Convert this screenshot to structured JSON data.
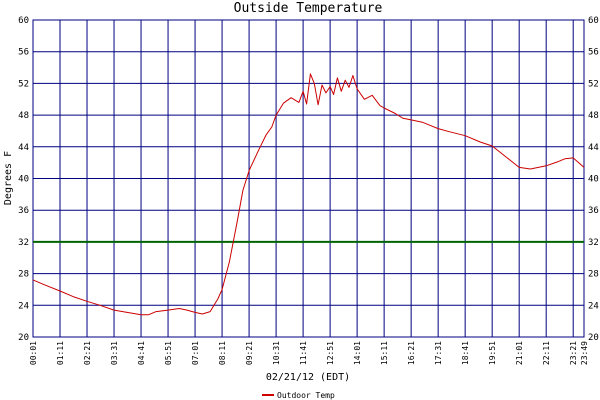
{
  "chart_data": {
    "type": "line",
    "title": "Outside Temperature",
    "xlabel": "02/21/12 (EDT)",
    "ylabel": "Degrees F",
    "ylim": [
      20,
      60
    ],
    "y_ticks": [
      20,
      24,
      28,
      32,
      36,
      40,
      44,
      48,
      52,
      56,
      60
    ],
    "x_range": [
      "00:01",
      "23:49"
    ],
    "x_ticks": [
      "00:01",
      "01:11",
      "02:21",
      "03:31",
      "04:41",
      "05:51",
      "07:01",
      "08:11",
      "09:21",
      "10:31",
      "11:41",
      "12:51",
      "14:01",
      "15:11",
      "16:21",
      "17:31",
      "18:41",
      "19:51",
      "21:01",
      "22:11",
      "23:21",
      "23:49"
    ],
    "grid": true,
    "legend_position": "bottom",
    "colors": {
      "background": "#ffffff",
      "grid": "#000080",
      "series": "#cc0000",
      "reference": "#006400"
    },
    "reference_line": {
      "y": 32
    },
    "series": [
      {
        "name": "Outdoor Temp",
        "x": [
          "00:01",
          "00:30",
          "01:11",
          "01:45",
          "02:21",
          "02:55",
          "03:31",
          "04:05",
          "04:41",
          "05:00",
          "05:20",
          "05:51",
          "06:20",
          "06:40",
          "07:01",
          "07:20",
          "07:40",
          "08:00",
          "08:11",
          "08:30",
          "08:50",
          "09:05",
          "09:21",
          "09:45",
          "10:05",
          "10:20",
          "10:31",
          "10:50",
          "11:10",
          "11:30",
          "11:41",
          "11:50",
          "12:00",
          "12:10",
          "12:20",
          "12:30",
          "12:40",
          "12:51",
          "13:00",
          "13:10",
          "13:20",
          "13:30",
          "13:40",
          "13:50",
          "14:01",
          "14:20",
          "14:40",
          "15:00",
          "15:11",
          "15:40",
          "16:00",
          "16:21",
          "16:50",
          "17:31",
          "18:00",
          "18:41",
          "19:20",
          "19:51",
          "20:30",
          "21:01",
          "21:30",
          "22:11",
          "22:40",
          "23:00",
          "23:21",
          "23:49"
        ],
        "y": [
          27.2,
          26.6,
          25.8,
          25.1,
          24.5,
          24.0,
          23.4,
          23.1,
          22.8,
          22.8,
          23.2,
          23.4,
          23.6,
          23.4,
          23.1,
          22.9,
          23.2,
          24.8,
          26.0,
          29.5,
          34.5,
          38.5,
          41.0,
          43.5,
          45.5,
          46.5,
          48.0,
          49.5,
          50.2,
          49.6,
          51.0,
          49.4,
          53.2,
          52.0,
          49.3,
          51.8,
          50.8,
          51.6,
          50.6,
          52.7,
          51.0,
          52.4,
          51.5,
          53.0,
          51.3,
          50.0,
          50.5,
          49.2,
          48.9,
          48.2,
          47.6,
          47.4,
          47.1,
          46.3,
          45.9,
          45.4,
          44.6,
          44.1,
          42.6,
          41.4,
          41.2,
          41.6,
          42.1,
          42.5,
          42.6,
          41.4
        ]
      }
    ]
  }
}
